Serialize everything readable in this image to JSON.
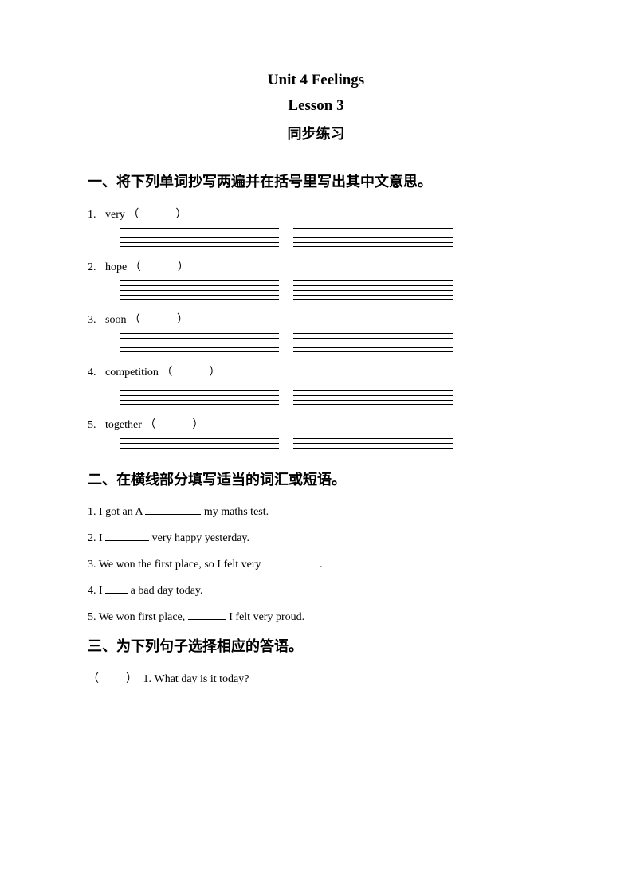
{
  "header": {
    "line1": "Unit 4 Feelings",
    "line2": "Lesson 3",
    "line3": "同步练习"
  },
  "section1": {
    "heading": "一、将下列单词抄写两遍并在括号里写出其中文意思。",
    "items": [
      {
        "num": "1.",
        "word": "very",
        "paren": "（　　　）"
      },
      {
        "num": "2.",
        "word": "hope",
        "paren": "（　　　）"
      },
      {
        "num": "3.",
        "word": "soon",
        "paren": "（　　　）"
      },
      {
        "num": "4.",
        "word": "competition",
        "paren": "（　　　）"
      },
      {
        "num": "5.",
        "word": "together",
        "paren": "（　　　）"
      }
    ]
  },
  "section2": {
    "heading": "二、在横线部分填写适当的词汇或短语。",
    "items": [
      {
        "pre": "1. I got an A ",
        "blank": "med",
        "post": " my maths test."
      },
      {
        "pre": "2. I ",
        "blank": "short",
        "post": " very happy yesterday."
      },
      {
        "pre": "3. We won the first place, so I felt very ",
        "blank": "med",
        "post": "."
      },
      {
        "pre": "4. I ",
        "blank": "tiny",
        "post": " a bad day today."
      },
      {
        "pre": "5. We won first place, ",
        "blank": "mid",
        "post": " I felt very proud."
      }
    ]
  },
  "section3": {
    "heading": "三、为下列句子选择相应的答语。",
    "items": [
      {
        "paren": "（　　）",
        "text": "1. What day is it today?"
      }
    ]
  },
  "style": {
    "ruled_lines_per_group": 4,
    "groups_per_item": 2,
    "colors": {
      "text": "#000000",
      "bg": "#ffffff",
      "line": "#000000"
    }
  }
}
